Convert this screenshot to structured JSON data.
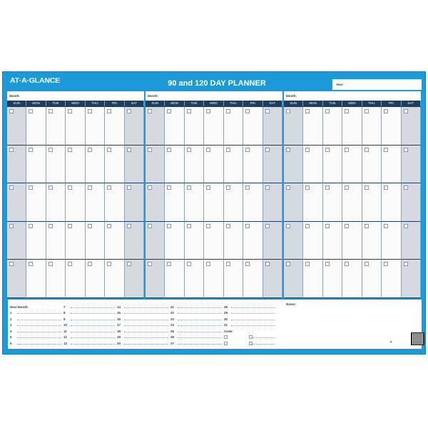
{
  "header": {
    "brand": "AT·A·GLANCE",
    "title": "90 and 120 DAY PLANNER",
    "year_label": "Year:"
  },
  "month_label": "Month:",
  "days": [
    "SUN",
    "MON",
    "TUE",
    "WED",
    "THU",
    "FRI",
    "SAT"
  ],
  "weeks_per_month": 5,
  "months_count": 3,
  "bottom": {
    "next_month_label": "Next Month:",
    "code_label": "Code:",
    "notes_label": "Notes:",
    "numbers": [
      "1",
      "2",
      "3",
      "4",
      "5",
      "6",
      "7",
      "8",
      "9",
      "10",
      "11",
      "12",
      "13",
      "14",
      "15",
      "16",
      "17",
      "18",
      "19",
      "20",
      "21",
      "22",
      "23",
      "24",
      "25",
      "26",
      "27",
      "28",
      "29",
      "30",
      "31"
    ]
  },
  "colors": {
    "board": "#1b9ad7",
    "header_bar": "#1d3e63",
    "weekend": "#d5dae0"
  }
}
